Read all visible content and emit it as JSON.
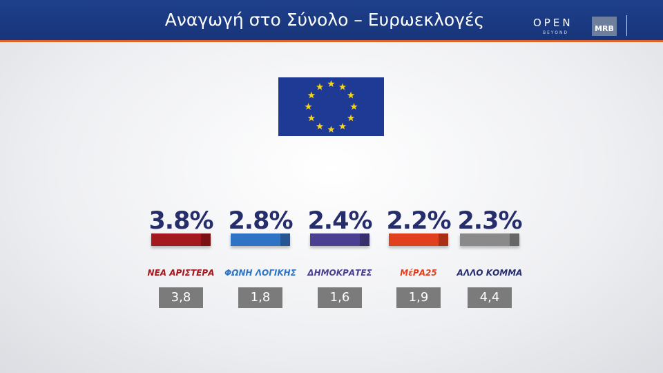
{
  "header": {
    "title": "Αναγωγή στο Σύνολο – Ευρωεκλογές",
    "brand": "OPEN",
    "brand_sub": "BEYOND",
    "pollster": "MRB"
  },
  "parties": [
    {
      "name": "ΝΕΑ ΑΡΙΣΤΕΡΑ",
      "result": "3.8%",
      "previous": "3,8",
      "color": "#a3191e"
    },
    {
      "name": "ΦΩΝΗ ΛΟΓΙΚΗΣ",
      "result": "2.8%",
      "previous": "1,8",
      "color": "#2f73c4"
    },
    {
      "name": "ΔΗΜΟΚΡΑΤΕΣ",
      "result": "2.4%",
      "previous": "1,6",
      "color": "#4b3f92"
    },
    {
      "name": "ΜέΡΑ25",
      "result": "2.2%",
      "previous": "1,9",
      "color": "#e0401e"
    },
    {
      "name": "ΑΛΛΟ ΚΟΜΜΑ",
      "result": "2.3%",
      "previous": "4,4",
      "color": "#8a8a8a"
    }
  ]
}
